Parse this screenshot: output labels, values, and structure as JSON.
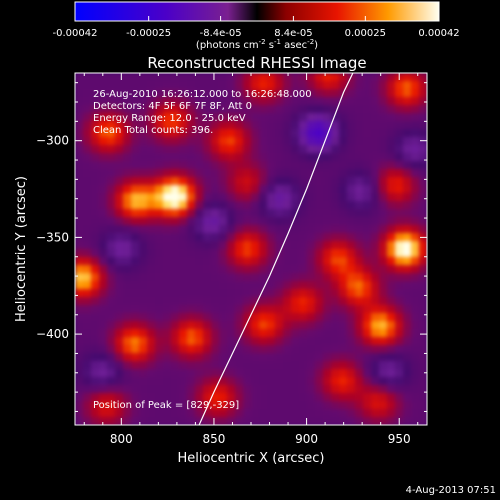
{
  "chart_data": {
    "type": "heatmap",
    "title": "Reconstructed RHESSI Image",
    "xlabel": "Heliocentric X (arcsec)",
    "ylabel": "Heliocentric Y (arcsec)",
    "xlim": [
      775,
      965
    ],
    "ylim": [
      -447,
      -265
    ],
    "xticks": [
      800,
      850,
      900,
      950
    ],
    "yticks": [
      -300,
      -350,
      -400
    ],
    "colorbar": {
      "min": -0.00042,
      "max": 0.00042,
      "tick_labels": [
        "-0.00042",
        "-0.00025",
        "-8.4e-05",
        "8.4e-05",
        "0.00025",
        "0.00042"
      ],
      "unit_label": {
        "pre": "(photons cm",
        "sup1": "-2",
        "mid1": " s",
        "sup2": "-1",
        "mid2": " asec",
        "sup3": "-2",
        "post": ")"
      }
    },
    "annotations": [
      "26-Aug-2010 16:26:12.000 to 16:26:48.000",
      "Detectors: 4F 5F 6F 7F 8F, Att 0",
      "Energy Range: 12.0 - 25.0 keV",
      "Clean    Total counts: 396."
    ],
    "peak_label": "Position of Peak = [829,-329]",
    "peak": [
      829,
      -329
    ],
    "limb": [
      [
        842,
        -447
      ],
      [
        850,
        -430
      ],
      [
        860,
        -410
      ],
      [
        870,
        -390
      ],
      [
        880,
        -370
      ],
      [
        890,
        -348
      ],
      [
        900,
        -325
      ],
      [
        910,
        -300
      ],
      [
        920,
        -275
      ],
      [
        925,
        -265
      ]
    ],
    "blobs": [
      {
        "x": 829,
        "y": -329,
        "v": 1.0
      },
      {
        "x": 808,
        "y": -331,
        "v": 0.7
      },
      {
        "x": 779,
        "y": -371,
        "v": 0.75
      },
      {
        "x": 793,
        "y": -296,
        "v": 0.55
      },
      {
        "x": 827,
        "y": -290,
        "v": 0.5
      },
      {
        "x": 858,
        "y": -300,
        "v": 0.5
      },
      {
        "x": 877,
        "y": -270,
        "v": 0.45
      },
      {
        "x": 912,
        "y": -266,
        "v": 0.45
      },
      {
        "x": 954,
        "y": -273,
        "v": 0.55
      },
      {
        "x": 953,
        "y": -356,
        "v": 0.95
      },
      {
        "x": 928,
        "y": -376,
        "v": 0.55
      },
      {
        "x": 940,
        "y": -396,
        "v": 0.7
      },
      {
        "x": 917,
        "y": -361,
        "v": 0.5
      },
      {
        "x": 898,
        "y": -384,
        "v": 0.45
      },
      {
        "x": 807,
        "y": -405,
        "v": 0.6
      },
      {
        "x": 838,
        "y": -402,
        "v": 0.55
      },
      {
        "x": 868,
        "y": -356,
        "v": 0.5
      },
      {
        "x": 877,
        "y": -395,
        "v": 0.5
      },
      {
        "x": 852,
        "y": -433,
        "v": 0.45
      },
      {
        "x": 919,
        "y": -424,
        "v": 0.45
      },
      {
        "x": 948,
        "y": -323,
        "v": 0.45
      },
      {
        "x": 792,
        "y": -437,
        "v": 0.4
      },
      {
        "x": 868,
        "y": -322,
        "v": 0.35
      },
      {
        "x": 939,
        "y": -435,
        "v": 0.4
      }
    ],
    "troughs": [
      {
        "x": 906,
        "y": -296,
        "v": -0.6
      },
      {
        "x": 849,
        "y": -342,
        "v": -0.35
      },
      {
        "x": 800,
        "y": -356,
        "v": -0.3
      },
      {
        "x": 885,
        "y": -330,
        "v": -0.35
      },
      {
        "x": 930,
        "y": -326,
        "v": -0.3
      },
      {
        "x": 944,
        "y": -420,
        "v": -0.3
      },
      {
        "x": 790,
        "y": -420,
        "v": -0.3
      },
      {
        "x": 958,
        "y": -305,
        "v": -0.3
      }
    ]
  },
  "timestamp": "4-Aug-2013 07:51"
}
